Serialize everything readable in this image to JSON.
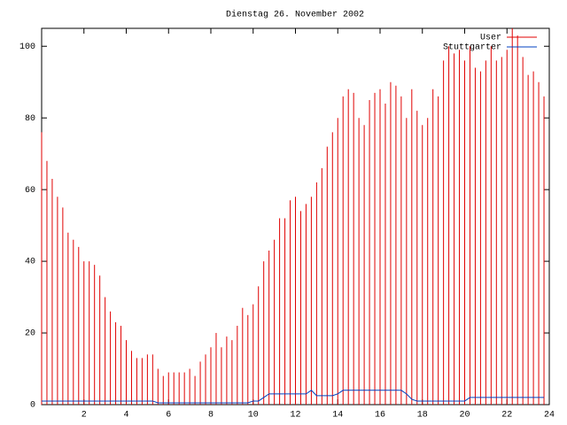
{
  "chart_data": {
    "type": "impulse",
    "title": "Dienstag 26. November 2002",
    "x": [
      0,
      0.25,
      0.5,
      0.75,
      1,
      1.25,
      1.5,
      1.75,
      2,
      2.25,
      2.5,
      2.75,
      3,
      3.25,
      3.5,
      3.75,
      4,
      4.25,
      4.5,
      4.75,
      5,
      5.25,
      5.5,
      5.75,
      6,
      6.25,
      6.5,
      6.75,
      7,
      7.25,
      7.5,
      7.75,
      8,
      8.25,
      8.5,
      8.75,
      9,
      9.25,
      9.5,
      9.75,
      10,
      10.25,
      10.5,
      10.75,
      11,
      11.25,
      11.5,
      11.75,
      12,
      12.25,
      12.5,
      12.75,
      13,
      13.25,
      13.5,
      13.75,
      14,
      14.25,
      14.5,
      14.75,
      15,
      15.25,
      15.5,
      15.75,
      16,
      16.25,
      16.5,
      16.75,
      17,
      17.25,
      17.5,
      17.75,
      18,
      18.25,
      18.5,
      18.75,
      19,
      19.25,
      19.5,
      19.75,
      20,
      20.25,
      20.5,
      20.75,
      21,
      21.25,
      21.5,
      21.75,
      22,
      22.25,
      22.5,
      22.75,
      23,
      23.25,
      23.5,
      23.75
    ],
    "series": [
      {
        "name": "User",
        "color": "#e00000",
        "style": "impulses",
        "values": [
          76,
          68,
          63,
          58,
          55,
          48,
          46,
          44,
          40,
          40,
          39,
          36,
          30,
          26,
          23,
          22,
          18,
          15,
          13,
          13,
          14,
          14,
          10,
          8,
          9,
          9,
          9,
          9,
          10,
          8,
          12,
          14,
          16,
          20,
          16,
          19,
          18,
          22,
          27,
          25,
          28,
          33,
          40,
          43,
          46,
          52,
          52,
          57,
          58,
          54,
          56,
          58,
          62,
          66,
          72,
          76,
          80,
          86,
          88,
          87,
          80,
          78,
          85,
          87,
          88,
          84,
          90,
          89,
          86,
          80,
          88,
          82,
          78,
          80,
          88,
          86,
          96,
          100,
          98,
          99,
          96,
          100,
          94,
          93,
          96,
          100,
          96,
          97,
          99,
          105,
          103,
          97,
          92,
          93,
          90,
          86
        ]
      },
      {
        "name": "Stuttgarter",
        "color": "#0040c0",
        "style": "line",
        "values": [
          1,
          1,
          1,
          1,
          1,
          1,
          1,
          1,
          1,
          1,
          1,
          1,
          1,
          1,
          1,
          1,
          1,
          1,
          1,
          1,
          1,
          1,
          0.5,
          0.5,
          0.5,
          0.5,
          0.5,
          0.5,
          0.5,
          0.5,
          0.5,
          0.5,
          0.5,
          0.5,
          0.5,
          0.5,
          0.5,
          0.5,
          0.5,
          0.5,
          1,
          1,
          2,
          3,
          3,
          3,
          3,
          3,
          3,
          3,
          3,
          4,
          2.5,
          2.5,
          2.5,
          2.5,
          3,
          4,
          4,
          4,
          4,
          4,
          4,
          4,
          4,
          4,
          4,
          4,
          4,
          3,
          1.5,
          1,
          1,
          1,
          1,
          1,
          1,
          1,
          1,
          1,
          1,
          2,
          2,
          2,
          2,
          2,
          2,
          2,
          2,
          2,
          2,
          2,
          2,
          2,
          2,
          2
        ]
      }
    ],
    "xlim": [
      0,
      24
    ],
    "xticks": [
      2,
      4,
      6,
      8,
      10,
      12,
      14,
      16,
      18,
      20,
      22,
      24
    ],
    "ylim": [
      0,
      105
    ],
    "yticks": [
      0,
      20,
      40,
      60,
      80,
      100
    ],
    "legend": "top-right"
  }
}
